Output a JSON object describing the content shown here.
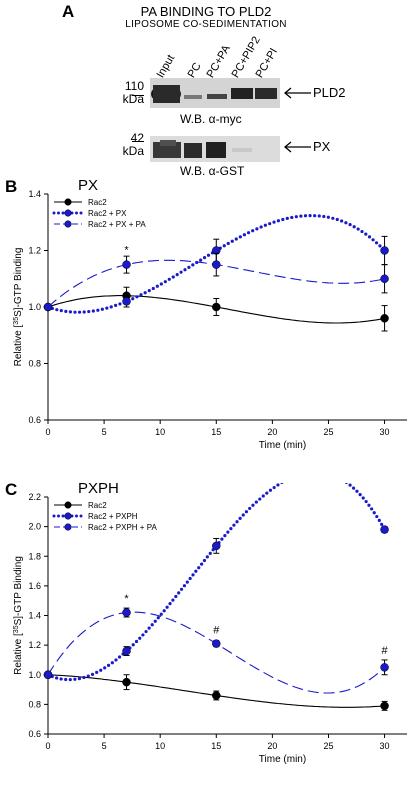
{
  "panel_a": {
    "letter": "A",
    "title": "PA BINDING TO PLD2",
    "subtitle": "LIPOSOME CO-SEDIMENTATION",
    "lanes": [
      "Input",
      "PC",
      "PC+PA",
      "PC+PIP2",
      "PC+PI"
    ],
    "blots": [
      {
        "mw": "110",
        "mw_unit": "kDa",
        "target": "PLD2",
        "wb_label": "W.B. α-myc"
      },
      {
        "mw": "42",
        "mw_unit": "kDa",
        "target": "PX",
        "wb_label": "W.B. α-GST"
      }
    ]
  },
  "chart_data": [
    {
      "panel": "B",
      "title": "PX",
      "type": "line",
      "xlabel": "Time (min)",
      "ylabel": "Relative [35S]-GTP Binding",
      "xlim": [
        0,
        32
      ],
      "ylim": [
        0.6,
        1.4
      ],
      "xticks": [
        0,
        5,
        10,
        15,
        20,
        25,
        30
      ],
      "yticks": [
        0.6,
        0.8,
        1.0,
        1.2,
        1.4
      ],
      "x": [
        0,
        7,
        15,
        30
      ],
      "series": [
        {
          "name": "Rac2",
          "style": "solid",
          "color": "#000000",
          "values": [
            1.0,
            1.04,
            1.0,
            0.96
          ],
          "errors": [
            0,
            0.03,
            0.03,
            0.045
          ]
        },
        {
          "name": "Rac2 + PX",
          "style": "dotted",
          "color": "#1a1acc",
          "values": [
            1.0,
            1.02,
            1.2,
            1.2
          ],
          "errors": [
            0,
            0.02,
            0.04,
            0.05
          ]
        },
        {
          "name": "Rac2 + PX + PA",
          "style": "dashed",
          "color": "#1a1acc",
          "values": [
            1.0,
            1.15,
            1.15,
            1.1
          ],
          "errors": [
            0,
            0.03,
            0.04,
            0.05
          ]
        }
      ],
      "annotations": [
        {
          "text": "*",
          "x": 7,
          "y": 1.19
        }
      ],
      "legend": "top-left"
    },
    {
      "panel": "C",
      "title": "PXPH",
      "type": "line",
      "xlabel": "Time (min)",
      "ylabel": "Relative [35S]-GTP Binding",
      "xlim": [
        0,
        32
      ],
      "ylim": [
        0.6,
        2.2
      ],
      "xticks": [
        0,
        5,
        10,
        15,
        20,
        25,
        30
      ],
      "yticks": [
        0.6,
        0.8,
        1.0,
        1.2,
        1.4,
        1.6,
        1.8,
        2.0,
        2.2
      ],
      "x": [
        0,
        7,
        15,
        30
      ],
      "series": [
        {
          "name": "Rac2",
          "style": "solid",
          "color": "#000000",
          "values": [
            1.0,
            0.95,
            0.86,
            0.79
          ],
          "errors": [
            0,
            0.05,
            0.03,
            0.03
          ]
        },
        {
          "name": "Rac2 + PXPH",
          "style": "dotted",
          "color": "#1a1acc",
          "values": [
            1.0,
            1.16,
            1.87,
            1.98
          ],
          "errors": [
            0,
            0.03,
            0.05,
            0.02
          ]
        },
        {
          "name": "Rac2 + PXPH + PA",
          "style": "dashed",
          "color": "#1a1acc",
          "values": [
            1.0,
            1.42,
            1.21,
            1.05
          ],
          "errors": [
            0,
            0.03,
            0.02,
            0.05
          ]
        }
      ],
      "annotations": [
        {
          "text": "*",
          "x": 7,
          "y": 1.49
        },
        {
          "text": "#",
          "x": 15,
          "y": 1.28
        },
        {
          "text": "#",
          "x": 30,
          "y": 1.14
        }
      ],
      "legend": "top-left"
    }
  ]
}
